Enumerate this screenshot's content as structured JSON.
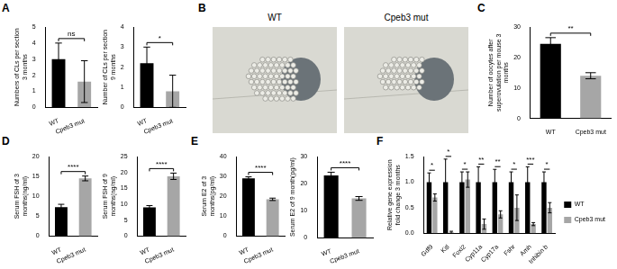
{
  "panel_labels": [
    "A",
    "B",
    "C",
    "D",
    "E",
    "F"
  ],
  "images": {
    "labels": [
      "WT",
      "Cpeb3 mut"
    ]
  },
  "chart_data": [
    {
      "type": "bar",
      "y_label": "Numbers of CLs per section 3 months",
      "categories": [
        "WT",
        "Cpeb3 mut"
      ],
      "values": [
        3.0,
        1.6
      ],
      "errors": [
        1.0,
        1.3
      ],
      "colors": [
        "#000000",
        "#a6a6a6"
      ],
      "ylim": [
        0,
        5
      ],
      "yticks": [
        0,
        1,
        2,
        3,
        4,
        5
      ],
      "grid": false,
      "annotations": "ns"
    },
    {
      "type": "bar",
      "y_label": "Number of CLs per section 9 months",
      "categories": [
        "WT",
        "Cpeb3 mut"
      ],
      "values": [
        2.2,
        0.8
      ],
      "errors": [
        0.8,
        0.8
      ],
      "colors": [
        "#000000",
        "#a6a6a6"
      ],
      "ylim": [
        0,
        4
      ],
      "yticks": [
        0,
        1,
        2,
        3,
        4
      ],
      "grid": false,
      "annotations": "*"
    },
    {
      "type": "bar",
      "y_label": "Number of oocytes after superovulation per mouse 3 months",
      "categories": [
        "WT",
        "Cpeb3 mut"
      ],
      "values": [
        24.5,
        14
      ],
      "errors": [
        2,
        1
      ],
      "colors": [
        "#000000",
        "#a6a6a6"
      ],
      "ylim": [
        0,
        30
      ],
      "yticks": [
        0,
        10,
        20,
        30
      ],
      "grid": false,
      "annotations": "**"
    },
    {
      "type": "bar",
      "y_label": "Serum FSH of 3 months(ng/ml)",
      "categories": [
        "WT",
        "Cpeb3 mut"
      ],
      "values": [
        7.3,
        14.5
      ],
      "errors": [
        0.7,
        0.6
      ],
      "colors": [
        "#000000",
        "#a6a6a6"
      ],
      "ylim": [
        0,
        20
      ],
      "yticks": [
        0,
        5,
        10,
        15,
        20
      ],
      "grid": false,
      "annotations": "****"
    },
    {
      "type": "bar",
      "y_label": "Serum FSH of 9 months(ng/ml)",
      "categories": [
        "WT",
        "Cpeb3 mut"
      ],
      "values": [
        9,
        18.8
      ],
      "errors": [
        0.6,
        1
      ],
      "colors": [
        "#000000",
        "#a6a6a6"
      ],
      "ylim": [
        0,
        25
      ],
      "yticks": [
        0,
        5,
        10,
        15,
        20,
        25
      ],
      "grid": false,
      "annotations": "****"
    },
    {
      "type": "bar",
      "y_label": "Serum E2 of 3 months(pg/ml)",
      "categories": [
        "WT",
        "Cpeb3 mut"
      ],
      "values": [
        29,
        18.5
      ],
      "errors": [
        0.8,
        0.6
      ],
      "colors": [
        "#000000",
        "#a6a6a6"
      ],
      "ylim": [
        0,
        40
      ],
      "yticks": [
        0,
        10,
        20,
        30,
        40
      ],
      "grid": false,
      "annotations": "****"
    },
    {
      "type": "bar",
      "y_label": "Serum E2 of 9 month(pg/ml)",
      "categories": [
        "WT",
        "Cpeb3 mut"
      ],
      "values": [
        23,
        14.5
      ],
      "errors": [
        1.2,
        0.7
      ],
      "colors": [
        "#000000",
        "#a6a6a6"
      ],
      "ylim": [
        0,
        30
      ],
      "yticks": [
        0,
        10,
        20,
        30
      ],
      "grid": false,
      "annotations": "****"
    },
    {
      "type": "bar",
      "y_label": "Relative gene expression fold change 3 months",
      "categories": [
        "Gdf9",
        "Kitl",
        "Foxl2",
        "Cyp11a",
        "Cyp17a",
        "Fshr",
        "Amh",
        "Inhibin b"
      ],
      "series": [
        {
          "name": "WT",
          "color": "#000000",
          "values": [
            1,
            1,
            1,
            1,
            1,
            1,
            1,
            1
          ],
          "errors": [
            0.18,
            0.45,
            0.2,
            0.3,
            0.25,
            0.2,
            0.3,
            0.2
          ]
        },
        {
          "name": "Cpeb3 mut",
          "color": "#a6a6a6",
          "values": [
            0.7,
            0.02,
            1.05,
            0.18,
            0.37,
            0.5,
            0.18,
            0.5
          ],
          "errors": [
            0.07,
            0.02,
            0.15,
            0.1,
            0.07,
            0.25,
            0.03,
            0.1
          ]
        }
      ],
      "ylim": [
        0,
        1.5
      ],
      "yticks": [
        {
          "value": 0,
          "label": "0.0"
        },
        {
          "value": 0.5,
          "label": "0.5"
        },
        {
          "value": 1,
          "label": "1.0"
        },
        {
          "value": 1.5,
          "label": "1.5"
        }
      ],
      "grid": false,
      "legend": "right",
      "annotations": [
        "*",
        "*",
        "*",
        "**",
        "**",
        "*",
        "***",
        "*"
      ]
    }
  ]
}
